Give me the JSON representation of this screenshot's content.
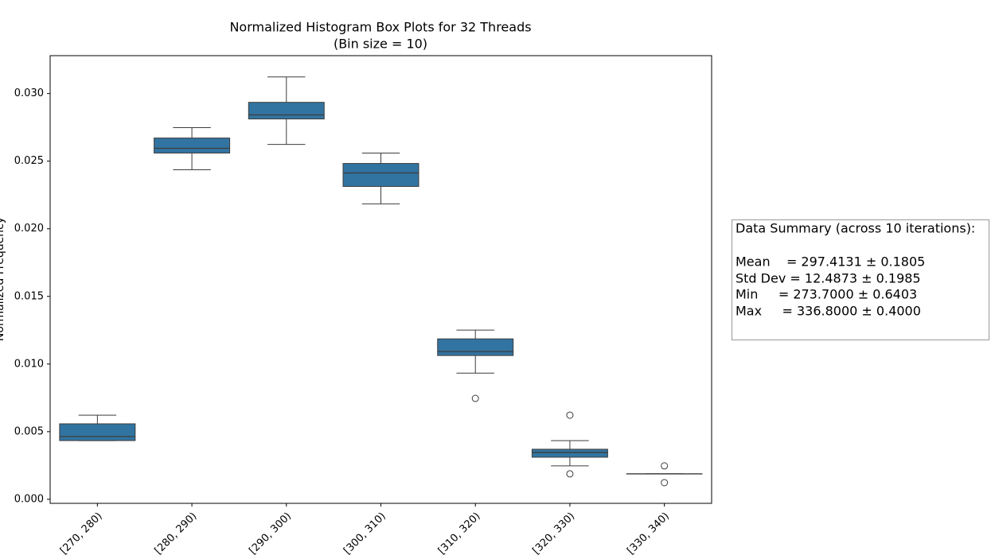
{
  "chart_data": {
    "type": "box",
    "title": "Normalized Histogram Box Plots for 32 Threads",
    "subtitle": "(Bin size = 10)",
    "ylabel": "Normalized Frequency",
    "categories": [
      "[270, 280)",
      "[280, 290)",
      "[290, 300)",
      "[300, 310)",
      "[310, 320)",
      "[320, 330)",
      "[330, 340)"
    ],
    "color": "#3274a1",
    "boxes": [
      {
        "low": 0.00434,
        "q1": 0.00434,
        "median": 0.00464,
        "q3": 0.00558,
        "high": 0.00622,
        "outliers": []
      },
      {
        "low": 0.02436,
        "q1": 0.0256,
        "median": 0.02595,
        "q3": 0.02671,
        "high": 0.02748,
        "outliers": []
      },
      {
        "low": 0.02624,
        "q1": 0.02812,
        "median": 0.02842,
        "q3": 0.02935,
        "high": 0.03123,
        "outliers": []
      },
      {
        "low": 0.02184,
        "q1": 0.02313,
        "median": 0.02413,
        "q3": 0.02483,
        "high": 0.0256,
        "outliers": []
      },
      {
        "low": 0.00933,
        "q1": 0.01063,
        "median": 0.01092,
        "q3": 0.01186,
        "high": 0.01251,
        "outliers": [
          0.00746
        ]
      },
      {
        "low": 0.00247,
        "q1": 0.00311,
        "median": 0.00346,
        "q3": 0.0037,
        "high": 0.00434,
        "outliers": [
          0.00622,
          0.00188
        ]
      },
      {
        "low": 0.00188,
        "q1": 0.00188,
        "median": 0.00188,
        "q3": 0.00188,
        "high": 0.00188,
        "outliers": [
          0.00247,
          0.00123
        ]
      }
    ],
    "ylim": [
      -0.0003,
      0.0328
    ],
    "yticks": [
      {
        "value": 0,
        "label": "0.000"
      },
      {
        "value": 0.005,
        "label": "0.005"
      },
      {
        "value": 0.01,
        "label": "0.010"
      },
      {
        "value": 0.015,
        "label": "0.015"
      },
      {
        "value": 0.02,
        "label": "0.020"
      },
      {
        "value": 0.025,
        "label": "0.025"
      },
      {
        "value": 0.03,
        "label": "0.030"
      }
    ],
    "grid": false,
    "annotation": [
      "Data Summary (across 10 iterations):",
      "Mean    = 297.4131 ± 0.1805",
      "Std Dev = 12.4873 ± 0.1985",
      "Min     = 273.7000 ± 0.6403",
      "Max     = 336.8000 ± 0.4000"
    ]
  }
}
